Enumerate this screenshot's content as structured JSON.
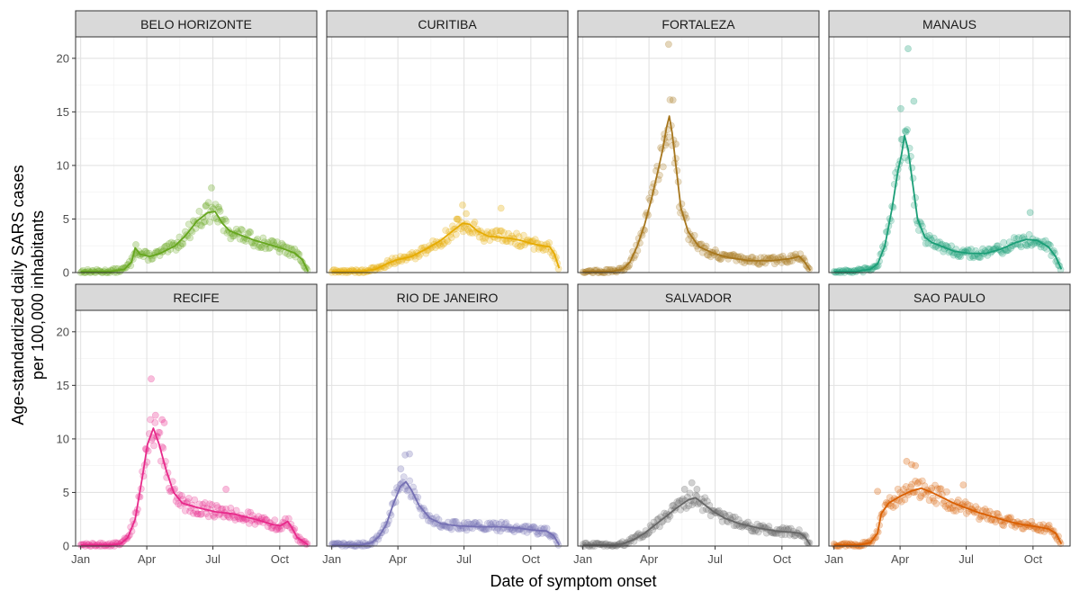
{
  "chart_data": {
    "type": "scatter",
    "xlabel": "Date of symptom onset",
    "ylabel_lines": [
      "Age-standardized daily SARS cases",
      "per 100,000 inhabitants"
    ],
    "ylim": [
      0,
      22
    ],
    "yticks": [
      0,
      5,
      10,
      15,
      20
    ],
    "xlim": [
      -7,
      325
    ],
    "xticks": [
      {
        "label": "Jan",
        "day": 0
      },
      {
        "label": "Apr",
        "day": 91
      },
      {
        "label": "Jul",
        "day": 182
      },
      {
        "label": "Oct",
        "day": 274
      }
    ],
    "x_unit": "day of 2020",
    "grid": true,
    "panels": [
      {
        "name": "BELO HORIZONTE",
        "color": "#66a61e",
        "smooth": [
          [
            0,
            0.1
          ],
          [
            40,
            0.1
          ],
          [
            60,
            0.3
          ],
          [
            70,
            1.0
          ],
          [
            75,
            2.3
          ],
          [
            82,
            1.7
          ],
          [
            95,
            1.5
          ],
          [
            110,
            1.8
          ],
          [
            130,
            2.5
          ],
          [
            145,
            3.5
          ],
          [
            160,
            4.8
          ],
          [
            175,
            5.6
          ],
          [
            185,
            5.7
          ],
          [
            195,
            4.6
          ],
          [
            205,
            3.9
          ],
          [
            220,
            3.5
          ],
          [
            240,
            3.0
          ],
          [
            260,
            2.6
          ],
          [
            280,
            2.2
          ],
          [
            295,
            1.8
          ],
          [
            305,
            1.2
          ],
          [
            313,
            0.1
          ]
        ],
        "outliers": [
          [
            180,
            7.9
          ],
          [
            172,
            6.2
          ],
          [
            190,
            6.1
          ],
          [
            76,
            2.6
          ]
        ]
      },
      {
        "name": "CURITIBA",
        "color": "#e6ab02",
        "smooth": [
          [
            0,
            0.1
          ],
          [
            40,
            0.1
          ],
          [
            60,
            0.3
          ],
          [
            75,
            0.8
          ],
          [
            90,
            1.2
          ],
          [
            110,
            1.5
          ],
          [
            130,
            2.2
          ],
          [
            150,
            3.0
          ],
          [
            165,
            3.8
          ],
          [
            180,
            4.6
          ],
          [
            190,
            4.5
          ],
          [
            200,
            3.9
          ],
          [
            215,
            3.4
          ],
          [
            230,
            3.3
          ],
          [
            245,
            3.2
          ],
          [
            260,
            3.0
          ],
          [
            275,
            2.7
          ],
          [
            290,
            2.5
          ],
          [
            300,
            2.4
          ],
          [
            306,
            1.8
          ],
          [
            313,
            0.4
          ]
        ],
        "outliers": [
          [
            180,
            6.3
          ],
          [
            233,
            6.0
          ],
          [
            185,
            5.5
          ],
          [
            172,
            5.0
          ]
        ]
      },
      {
        "name": "FORTALEZA",
        "color": "#a6761d",
        "smooth": [
          [
            0,
            0.1
          ],
          [
            40,
            0.1
          ],
          [
            55,
            0.3
          ],
          [
            65,
            1.0
          ],
          [
            75,
            2.5
          ],
          [
            85,
            4.5
          ],
          [
            95,
            7.0
          ],
          [
            105,
            10.0
          ],
          [
            110,
            11.5
          ],
          [
            115,
            13.5
          ],
          [
            119,
            14.6
          ],
          [
            123,
            13.0
          ],
          [
            128,
            10.0
          ],
          [
            135,
            6.0
          ],
          [
            145,
            3.8
          ],
          [
            160,
            2.4
          ],
          [
            180,
            1.8
          ],
          [
            200,
            1.4
          ],
          [
            230,
            1.1
          ],
          [
            260,
            1.1
          ],
          [
            285,
            1.3
          ],
          [
            298,
            1.5
          ],
          [
            305,
            1.0
          ],
          [
            313,
            0.2
          ]
        ],
        "outliers": [
          [
            118,
            21.3
          ],
          [
            124,
            16.1
          ],
          [
            112,
            12.5
          ],
          [
            128,
            12.0
          ]
        ]
      },
      {
        "name": "MANAUS",
        "color": "#1b9e77",
        "smooth": [
          [
            0,
            0.1
          ],
          [
            30,
            0.1
          ],
          [
            50,
            0.3
          ],
          [
            60,
            0.8
          ],
          [
            70,
            2.5
          ],
          [
            80,
            6.0
          ],
          [
            88,
            9.5
          ],
          [
            93,
            11.0
          ],
          [
            97,
            12.8
          ],
          [
            102,
            11.5
          ],
          [
            108,
            8.5
          ],
          [
            115,
            5.0
          ],
          [
            125,
            3.3
          ],
          [
            135,
            2.8
          ],
          [
            150,
            2.4
          ],
          [
            165,
            2.0
          ],
          [
            185,
            1.8
          ],
          [
            210,
            1.8
          ],
          [
            230,
            2.2
          ],
          [
            250,
            2.8
          ],
          [
            265,
            3.1
          ],
          [
            280,
            3.0
          ],
          [
            295,
            2.4
          ],
          [
            305,
            1.5
          ],
          [
            313,
            0.3
          ]
        ],
        "outliers": [
          [
            102,
            20.9
          ],
          [
            110,
            16.0
          ],
          [
            92,
            15.3
          ],
          [
            98,
            13.2
          ],
          [
            270,
            5.6
          ]
        ]
      },
      {
        "name": "RECIFE",
        "color": "#e7298a",
        "smooth": [
          [
            0,
            0.1
          ],
          [
            40,
            0.1
          ],
          [
            55,
            0.2
          ],
          [
            65,
            0.8
          ],
          [
            75,
            2.5
          ],
          [
            85,
            6.5
          ],
          [
            92,
            9.5
          ],
          [
            100,
            11.0
          ],
          [
            108,
            9.5
          ],
          [
            118,
            7.0
          ],
          [
            128,
            5.0
          ],
          [
            140,
            4.0
          ],
          [
            160,
            3.6
          ],
          [
            185,
            3.2
          ],
          [
            210,
            3.0
          ],
          [
            240,
            2.5
          ],
          [
            265,
            2.0
          ],
          [
            275,
            1.9
          ],
          [
            285,
            2.3
          ],
          [
            290,
            1.8
          ],
          [
            298,
            0.8
          ],
          [
            313,
            0.1
          ]
        ],
        "outliers": [
          [
            97,
            15.6
          ],
          [
            103,
            12.2
          ],
          [
            112,
            11.8
          ],
          [
            115,
            11.5
          ],
          [
            90,
            9.0
          ],
          [
            200,
            5.3
          ]
        ]
      },
      {
        "name": "RIO DE JANEIRO",
        "color": "#7570b3",
        "smooth": [
          [
            0,
            0.1
          ],
          [
            40,
            0.1
          ],
          [
            55,
            0.3
          ],
          [
            65,
            0.9
          ],
          [
            75,
            2.0
          ],
          [
            85,
            4.0
          ],
          [
            95,
            5.6
          ],
          [
            102,
            6.0
          ],
          [
            110,
            5.2
          ],
          [
            120,
            3.8
          ],
          [
            135,
            2.6
          ],
          [
            150,
            2.1
          ],
          [
            170,
            1.9
          ],
          [
            200,
            1.8
          ],
          [
            230,
            1.8
          ],
          [
            255,
            1.7
          ],
          [
            275,
            1.5
          ],
          [
            295,
            1.4
          ],
          [
            305,
            1.0
          ],
          [
            313,
            0.1
          ]
        ],
        "outliers": [
          [
            101,
            8.5
          ],
          [
            107,
            8.6
          ],
          [
            95,
            7.2
          ]
        ]
      },
      {
        "name": "SALVADOR",
        "color": "#666666",
        "smooth": [
          [
            0,
            0.1
          ],
          [
            40,
            0.1
          ],
          [
            55,
            0.2
          ],
          [
            70,
            0.6
          ],
          [
            85,
            1.2
          ],
          [
            100,
            2.0
          ],
          [
            115,
            2.8
          ],
          [
            130,
            3.6
          ],
          [
            145,
            4.3
          ],
          [
            155,
            4.5
          ],
          [
            165,
            4.0
          ],
          [
            180,
            3.2
          ],
          [
            195,
            2.6
          ],
          [
            215,
            2.1
          ],
          [
            240,
            1.7
          ],
          [
            265,
            1.4
          ],
          [
            285,
            1.3
          ],
          [
            298,
            1.2
          ],
          [
            305,
            0.9
          ],
          [
            313,
            0.1
          ]
        ],
        "outliers": [
          [
            150,
            5.9
          ],
          [
            140,
            5.3
          ],
          [
            157,
            5.3
          ]
        ]
      },
      {
        "name": "SAO PAULO",
        "color": "#d95f02",
        "smooth": [
          [
            0,
            0.1
          ],
          [
            35,
            0.1
          ],
          [
            50,
            0.3
          ],
          [
            60,
            1.2
          ],
          [
            65,
            3.0
          ],
          [
            75,
            4.0
          ],
          [
            90,
            4.6
          ],
          [
            105,
            5.1
          ],
          [
            120,
            5.4
          ],
          [
            135,
            5.0
          ],
          [
            150,
            4.5
          ],
          [
            165,
            4.0
          ],
          [
            180,
            3.6
          ],
          [
            200,
            3.1
          ],
          [
            220,
            2.7
          ],
          [
            240,
            2.3
          ],
          [
            260,
            2.0
          ],
          [
            280,
            1.8
          ],
          [
            295,
            1.6
          ],
          [
            305,
            1.2
          ],
          [
            313,
            0.2
          ]
        ],
        "outliers": [
          [
            100,
            7.9
          ],
          [
            107,
            7.6
          ],
          [
            112,
            7.5
          ],
          [
            178,
            5.7
          ],
          [
            60,
            5.1
          ]
        ]
      }
    ]
  }
}
